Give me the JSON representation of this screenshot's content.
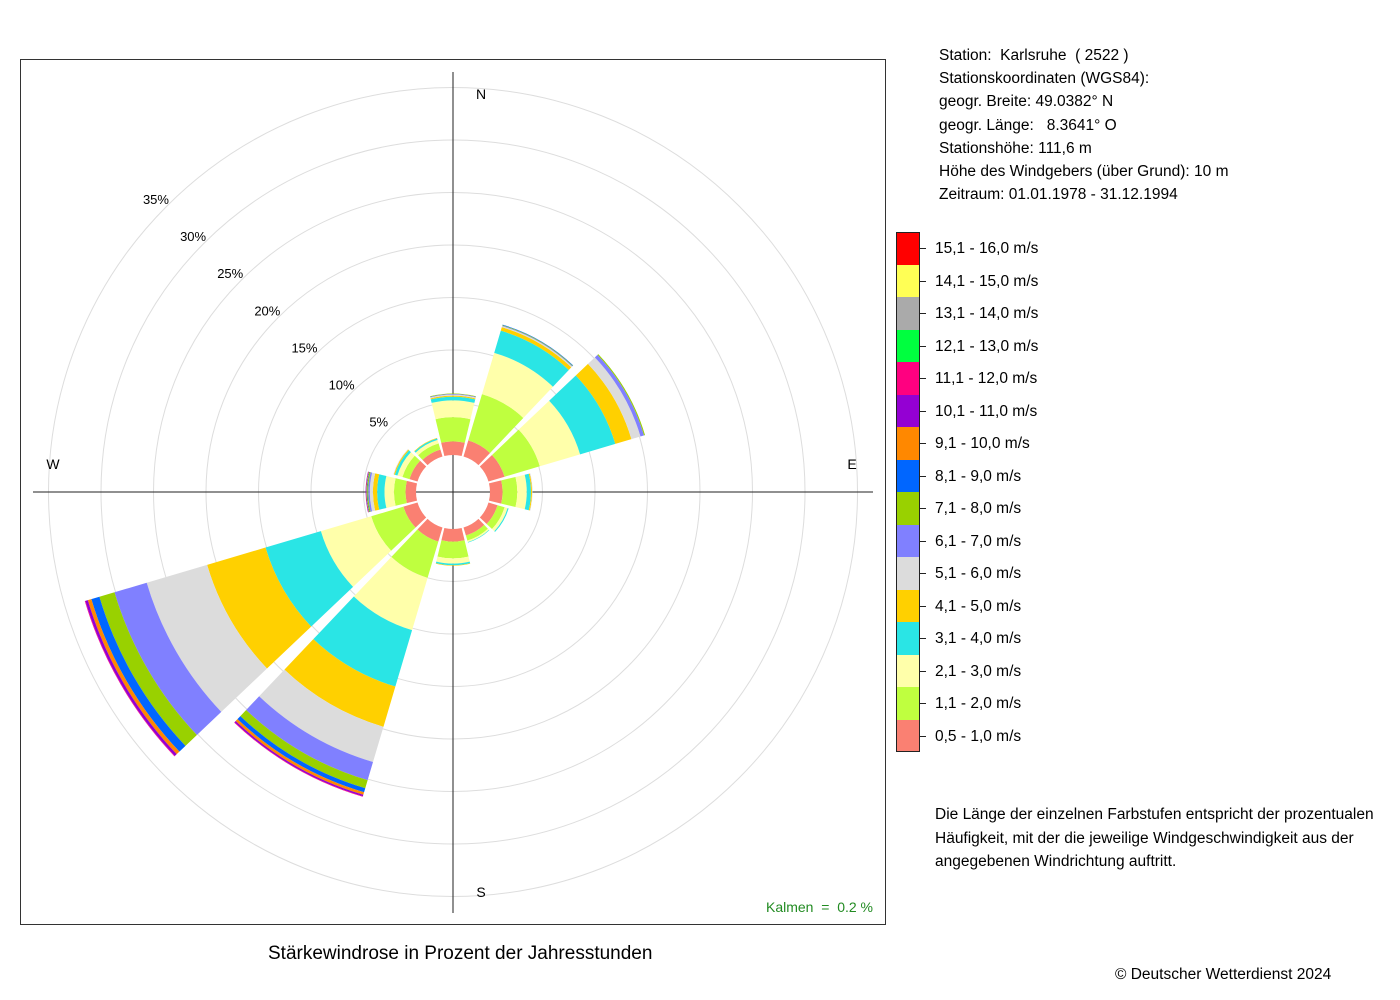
{
  "chart_data": {
    "type": "wind-rose",
    "title": "Stärkewindrose in Prozent der Jahresstunden",
    "directions_deg": [
      0,
      30,
      60,
      90,
      120,
      150,
      180,
      210,
      240,
      270,
      300,
      330
    ],
    "direction_labels": {
      "N": "N",
      "E": "E",
      "S": "S",
      "W": "W"
    },
    "radial_ticks": [
      5,
      10,
      15,
      20,
      25,
      30,
      35
    ],
    "radial_tick_labels": [
      "5%",
      "10%",
      "15%",
      "20%",
      "25%",
      "30%",
      "35%"
    ],
    "radial_max": 38,
    "calm_percent": 0.2,
    "calm_label": "Kalmen  =  0.2 %",
    "speed_classes": [
      {
        "label": "0,5 - 1,0 m/s",
        "color": "#FA8072"
      },
      {
        "label": "1,1 - 2,0 m/s",
        "color": "#BFFF3F"
      },
      {
        "label": "2,1 - 3,0 m/s",
        "color": "#FFFFAA"
      },
      {
        "label": "3,1 - 4,0 m/s",
        "color": "#2AE5E5"
      },
      {
        "label": "4,1 - 5,0 m/s",
        "color": "#FFD000"
      },
      {
        "label": "5,1 - 6,0 m/s",
        "color": "#DCDCDC"
      },
      {
        "label": "6,1 - 7,0 m/s",
        "color": "#8080FF"
      },
      {
        "label": "7,1 - 8,0 m/s",
        "color": "#99D100"
      },
      {
        "label": "8,1 - 9,0 m/s",
        "color": "#0066FF"
      },
      {
        "label": "9,1 - 10,0 m/s",
        "color": "#FF8800"
      },
      {
        "label": "10,1 - 11,0 m/s",
        "color": "#9400D3"
      },
      {
        "label": "11,1 - 12,0 m/s",
        "color": "#FF0080"
      },
      {
        "label": "12,1 - 13,0 m/s",
        "color": "#00FF3F"
      },
      {
        "label": "13,1 - 14,0 m/s",
        "color": "#AAAAAA"
      },
      {
        "label": "14,1 - 15,0 m/s",
        "color": "#FFFF55"
      },
      {
        "label": "15,1 - 16,0 m/s",
        "color": "#FF0000"
      }
    ],
    "series": [
      {
        "direction": 0,
        "values": [
          1.3,
          2.3,
          1.6,
          0.35,
          0.1,
          0.1,
          0.05,
          0.05,
          0,
          0,
          0,
          0,
          0,
          0,
          0,
          0
        ]
      },
      {
        "direction": 30,
        "values": [
          1.6,
          4.6,
          4.1,
          2.2,
          0.35,
          0.1,
          0.05,
          0.05,
          0.05,
          0,
          0,
          0,
          0,
          0,
          0,
          0
        ]
      },
      {
        "direction": 60,
        "values": [
          1.6,
          3.5,
          4.0,
          3.5,
          1.6,
          0.9,
          0.35,
          0.1,
          0,
          0,
          0,
          0,
          0,
          0,
          0,
          0
        ]
      },
      {
        "direction": 90,
        "values": [
          1.2,
          1.4,
          0.9,
          0.4,
          0.1,
          0.05,
          0,
          0,
          0,
          0,
          0,
          0,
          0,
          0,
          0,
          0
        ]
      },
      {
        "direction": 120,
        "values": [
          0.9,
          0.7,
          0.3,
          0.1,
          0,
          0,
          0,
          0,
          0,
          0,
          0,
          0,
          0,
          0,
          0,
          0
        ]
      },
      {
        "direction": 150,
        "values": [
          0.8,
          0.5,
          0.15,
          0.05,
          0,
          0,
          0,
          0,
          0,
          0,
          0,
          0,
          0,
          0,
          0,
          0
        ]
      },
      {
        "direction": 180,
        "values": [
          1.2,
          1.6,
          0.5,
          0.15,
          0.05,
          0,
          0,
          0,
          0,
          0,
          0,
          0,
          0,
          0,
          0,
          0
        ]
      },
      {
        "direction": 210,
        "values": [
          1.4,
          3.6,
          5.2,
          5.6,
          4.0,
          3.5,
          1.8,
          0.8,
          0.4,
          0.25,
          0.15,
          0.05,
          0,
          0,
          0,
          0
        ]
      },
      {
        "direction": 240,
        "values": [
          1.4,
          3.2,
          5.0,
          5.5,
          5.8,
          6.0,
          3.2,
          1.5,
          0.8,
          0.35,
          0.25,
          0.05,
          0,
          0,
          0,
          0
        ]
      },
      {
        "direction": 270,
        "values": [
          1.0,
          1.1,
          0.9,
          0.7,
          0.4,
          0.3,
          0.15,
          0.1,
          0.05,
          0.05,
          0.05,
          0,
          0,
          0,
          0,
          0
        ]
      },
      {
        "direction": 300,
        "values": [
          0.8,
          0.7,
          0.5,
          0.25,
          0.1,
          0.05,
          0,
          0,
          0,
          0,
          0,
          0,
          0,
          0,
          0,
          0
        ]
      },
      {
        "direction": 330,
        "values": [
          0.7,
          0.6,
          0.35,
          0.15,
          0.05,
          0,
          0,
          0,
          0,
          0,
          0,
          0,
          0,
          0,
          0,
          0
        ]
      }
    ]
  },
  "station": {
    "line1": "Station:  Karlsruhe  ( 2522 )",
    "line2": "Stationskoordinaten (WGS84):",
    "line3": "geogr. Breite: 49.0382° N",
    "line4": "geogr. Länge:   8.3641° O",
    "line5": "Stationshöhe: 111,6 m",
    "line6": "Höhe des Windgebers (über Grund): 10 m",
    "line7": "Zeitraum: 01.01.1978 - 31.12.1994"
  },
  "note": {
    "line1": "Die Länge der einzelnen Farbstufen entspricht der prozentualen",
    "line2": "Häufigkeit, mit der die jeweilige Windgeschwindigkeit aus der",
    "line3": "angegebenen Windrichtung auftritt."
  },
  "caption": "Stärkewindrose in Prozent der Jahresstunden",
  "copyright": "© Deutscher Wetterdienst  2024"
}
